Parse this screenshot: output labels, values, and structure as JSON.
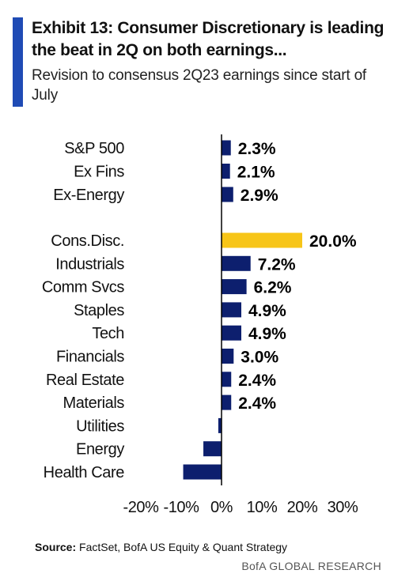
{
  "header": {
    "title": "Exhibit 13: Consumer Discretionary is leading the beat in 2Q on both earnings...",
    "subtitle": "Revision to consensus 2Q23 earnings since start of July"
  },
  "footer": {
    "source_label": "Source:",
    "source_text": "FactSet, BofA US Equity & Quant Strategy",
    "brand": "BofA GLOBAL RESEARCH"
  },
  "colors": {
    "accent": "#1f4bb5",
    "bar": "#0d1f6e",
    "highlight": "#f7c518",
    "axis": "#000000"
  },
  "chart_data": {
    "type": "bar",
    "orientation": "horizontal",
    "categories": [
      "S&P 500",
      "Ex Fins",
      "Ex-Energy",
      "Cons.Disc.",
      "Industrials",
      "Comm Svcs",
      "Staples",
      "Tech",
      "Financials",
      "Real Estate",
      "Materials",
      "Utilities",
      "Energy",
      "Health Care"
    ],
    "values": [
      2.3,
      2.1,
      2.9,
      20.0,
      7.2,
      6.2,
      4.9,
      4.9,
      3.0,
      2.4,
      2.4,
      -0.8,
      -4.5,
      -9.5
    ],
    "data_labels": [
      "2.3%",
      "2.1%",
      "2.9%",
      "20.0%",
      "7.2%",
      "6.2%",
      "4.9%",
      "4.9%",
      "3.0%",
      "2.4%",
      "2.4%",
      "",
      "",
      ""
    ],
    "highlight_category": "Cons.Disc.",
    "xlim": [
      -20,
      30
    ],
    "xticks": [
      -20,
      -10,
      0,
      10,
      20,
      30
    ],
    "xtick_labels": [
      "-20%",
      "-10%",
      "0%",
      "10%",
      "20%",
      "30%"
    ],
    "grid": false,
    "legend": "none"
  }
}
